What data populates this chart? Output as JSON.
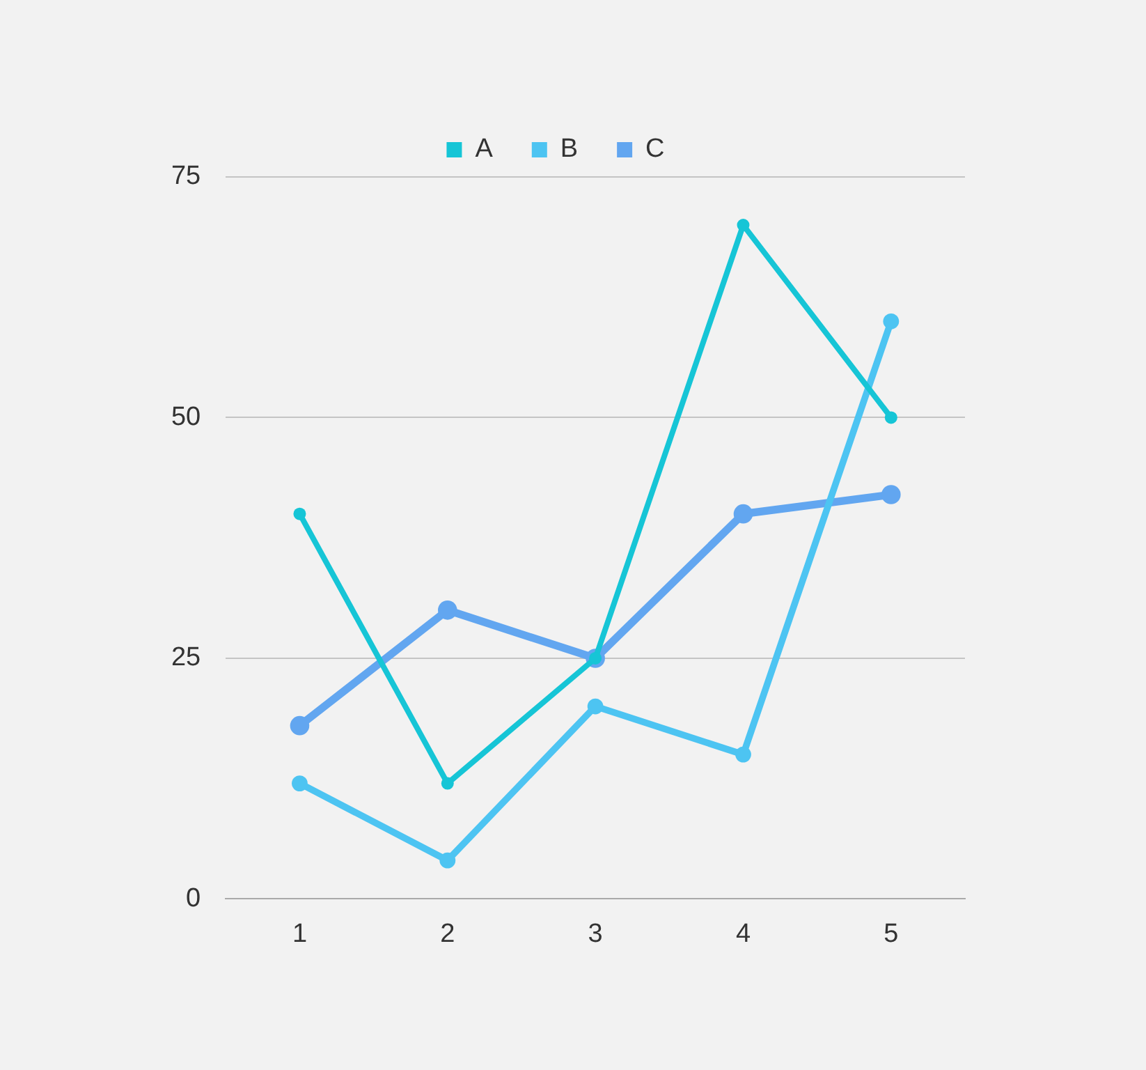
{
  "chart_data": {
    "type": "line",
    "categories": [
      "1",
      "2",
      "3",
      "4",
      "5"
    ],
    "series": [
      {
        "name": "A",
        "color": "#16c5d6",
        "values": [
          40,
          12,
          25,
          70,
          50
        ]
      },
      {
        "name": "B",
        "color": "#4dc4f2",
        "values": [
          12,
          4,
          20,
          15,
          60
        ]
      },
      {
        "name": "C",
        "color": "#62a6f0",
        "values": [
          18,
          30,
          25,
          40,
          42
        ]
      }
    ],
    "ylim": [
      0,
      75
    ],
    "yticks": [
      0,
      25,
      50,
      75
    ],
    "grid": "y",
    "legend": "top",
    "marker": "circle",
    "line_style": "solid"
  }
}
